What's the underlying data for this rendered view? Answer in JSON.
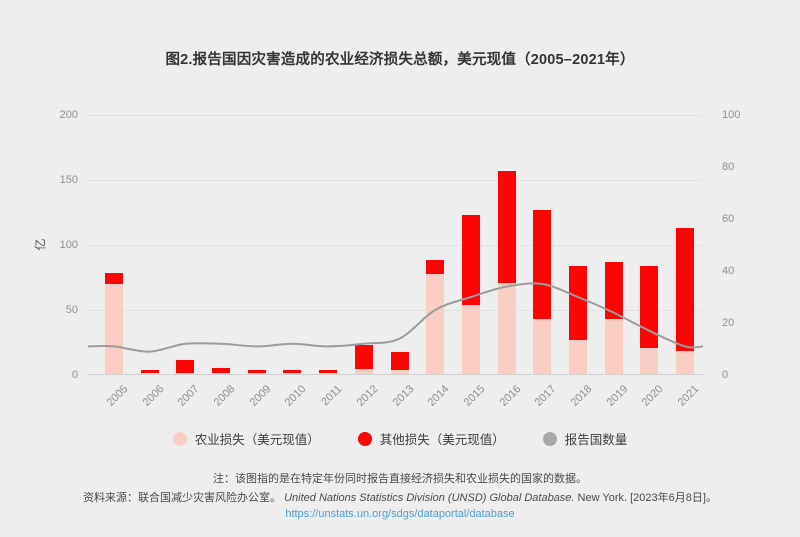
{
  "title": "图2.报告国因灾害造成的农业经济损失总额，美元现值（2005–2021年）",
  "colors": {
    "background": "#eeeeee",
    "agricultural_loss": "#f9cec5",
    "other_loss": "#fb0505",
    "countries_line": "#9c9c9c",
    "grid": "#e2e2e2",
    "axis_text": "#8f8f8f",
    "link": "#4e9bd5"
  },
  "chart_data": {
    "type": "bar",
    "subtype": "stacked-bars-with-line",
    "title": "图2.报告国因灾害造成的农业经济损失总额，美元现值（2005–2021年）",
    "categories": [
      "2005",
      "2006",
      "2007",
      "2008",
      "2009",
      "2010",
      "2011",
      "2012",
      "2013",
      "2014",
      "2015",
      "2016",
      "2017",
      "2018",
      "2019",
      "2020",
      "2021"
    ],
    "series": [
      {
        "name": "农业损失（美元现值）",
        "type": "bar",
        "axis": "left",
        "color": "#f9cec5",
        "values": [
          69,
          1,
          1,
          1,
          1,
          1,
          1,
          4,
          3,
          77,
          53,
          70,
          42,
          26,
          42,
          20,
          18
        ]
      },
      {
        "name": "其他损失（美元现值）",
        "type": "bar",
        "axis": "left",
        "color": "#fb0505",
        "values": [
          9,
          2,
          10,
          4,
          2,
          2,
          2,
          18,
          14,
          11,
          69,
          86,
          84,
          57,
          44,
          63,
          94
        ]
      },
      {
        "name": "报告国数量",
        "type": "line",
        "axis": "right",
        "color": "#9c9c9c",
        "values": [
          11,
          9,
          12,
          12,
          11,
          12,
          11,
          12,
          14,
          25,
          30,
          34,
          35,
          30,
          24,
          17,
          11
        ]
      }
    ],
    "axis_left": {
      "label": "亿",
      "min": 0,
      "max": 200,
      "ticks": [
        0,
        50,
        100,
        150,
        200
      ]
    },
    "axis_right": {
      "label": "",
      "min": 0,
      "max": 100,
      "ticks": [
        0,
        20,
        40,
        60,
        80,
        100
      ]
    },
    "grid": true,
    "legend_position": "bottom"
  },
  "notes": {
    "note": "注：该图指的是在特定年份同时报告直接经济损失和农业损失的国家的数据。",
    "source_prefix": "资料来源：联合国减少灾害风险办公室。",
    "source_italic": "United Nations Statistics Division (UNSD) Global Database.",
    "source_suffix": " New York. [2023年6月8日]。",
    "link": "https://unstats.un.org/sdgs/dataportal/database"
  }
}
